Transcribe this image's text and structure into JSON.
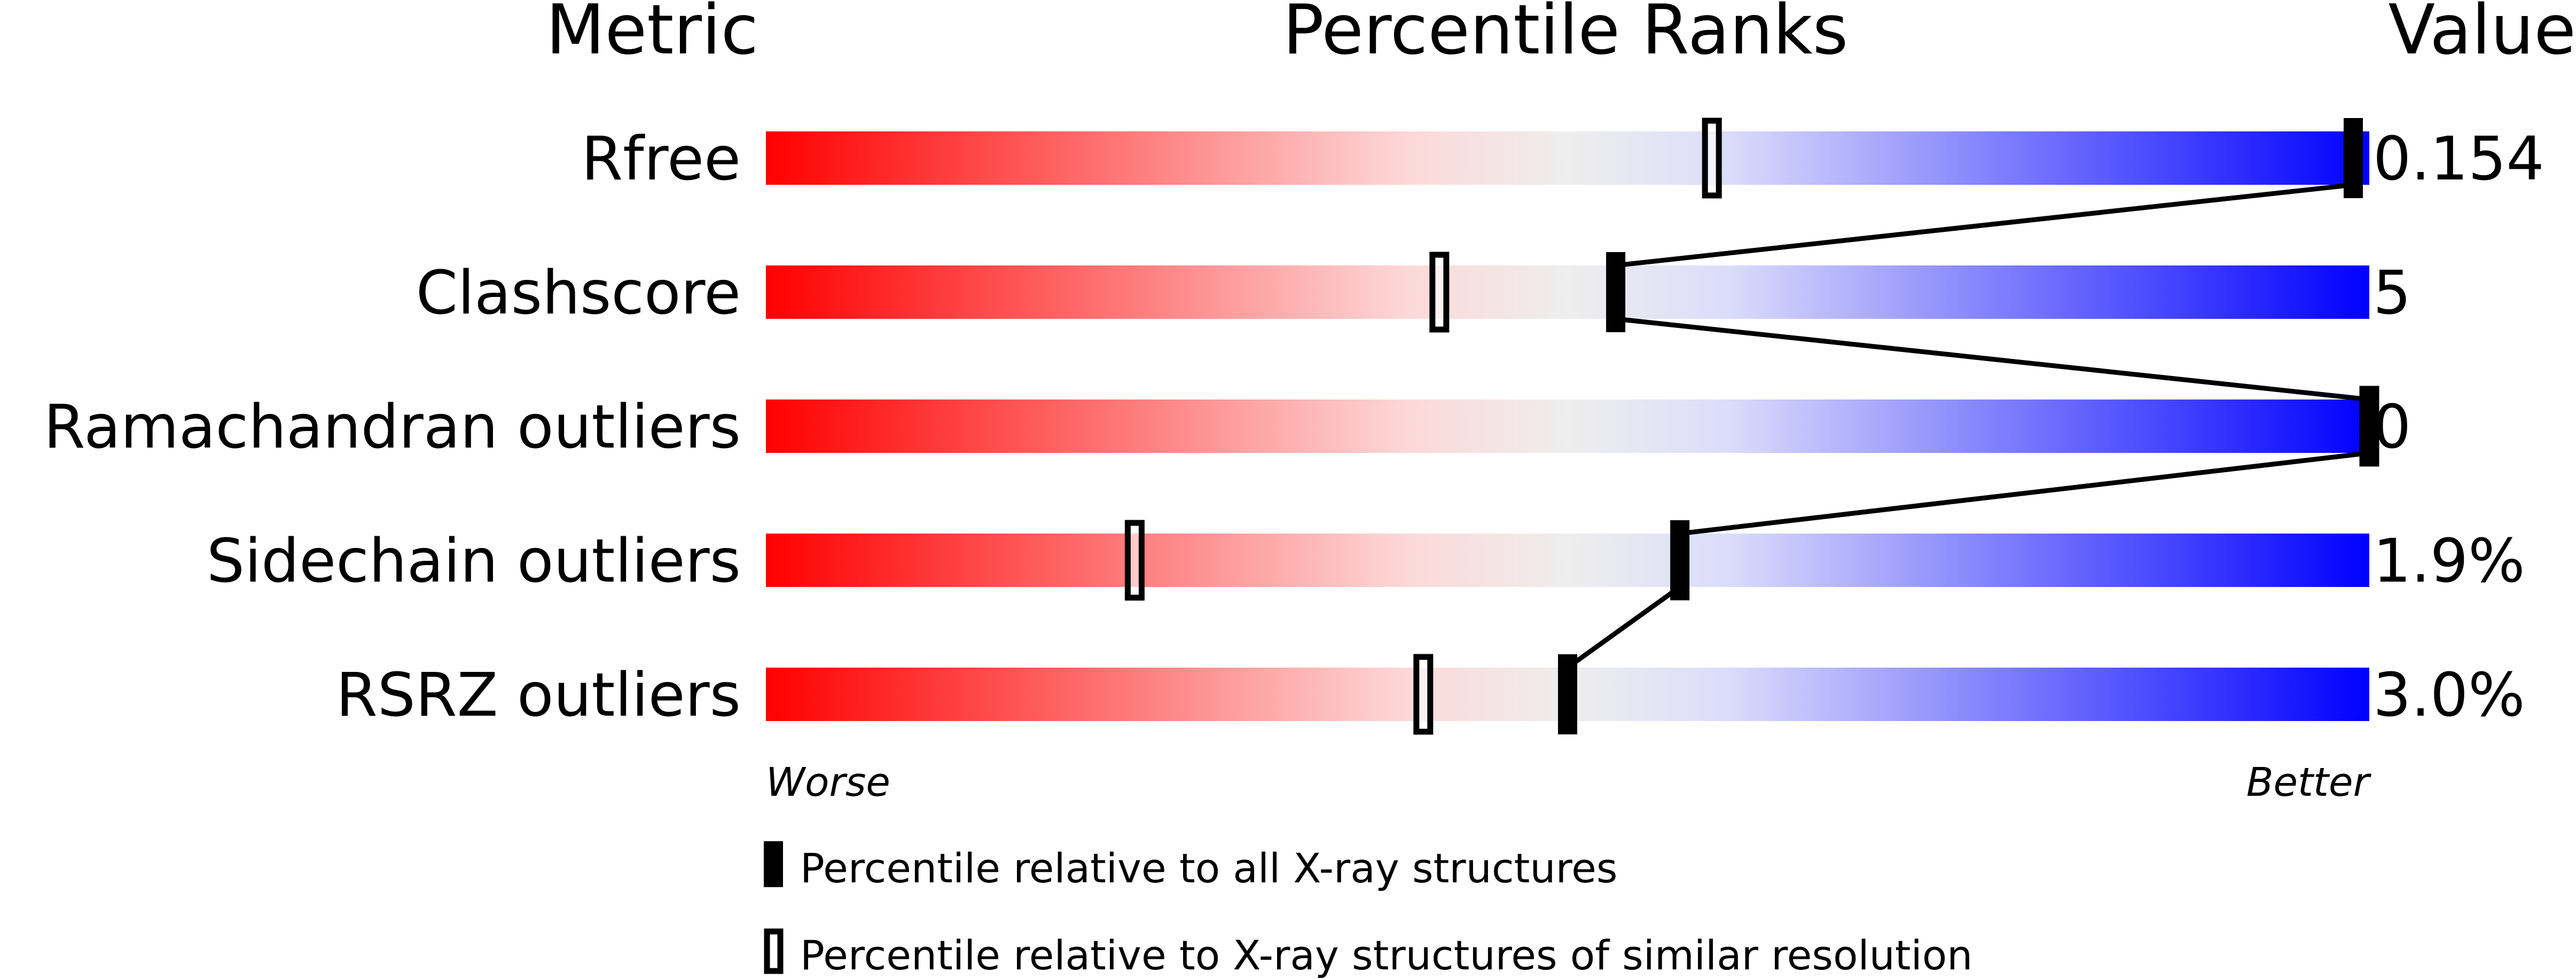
{
  "chart_data": {
    "type": "percentile-slider",
    "headers": {
      "metric": "Metric",
      "ranks": "Percentile Ranks",
      "value": "Value"
    },
    "xlim": [
      0,
      100
    ],
    "axis_ends": {
      "left": "Worse",
      "right": "Better"
    },
    "gradient_colors": [
      "#ff0000",
      "#fdd8d8",
      "#eeeeee",
      "#dcdcfb",
      "#0000ff"
    ],
    "rows": [
      {
        "metric": "Rfree",
        "value": "0.154",
        "percentile_all": 99,
        "percentile_similar": 59
      },
      {
        "metric": "Clashscore",
        "value": "5",
        "percentile_all": 53,
        "percentile_similar": 42
      },
      {
        "metric": "Ramachandran outliers",
        "value": "0",
        "percentile_all": 100,
        "percentile_similar": 100
      },
      {
        "metric": "Sidechain outliers",
        "value": "1.9%",
        "percentile_all": 57,
        "percentile_similar": 23
      },
      {
        "metric": "RSRZ outliers",
        "value": "3.0%",
        "percentile_all": 50,
        "percentile_similar": 41
      }
    ],
    "legend": [
      {
        "marker": "filled",
        "label": "Percentile relative to all X-ray structures"
      },
      {
        "marker": "hollow",
        "label": "Percentile relative to X-ray structures of similar resolution"
      }
    ]
  }
}
